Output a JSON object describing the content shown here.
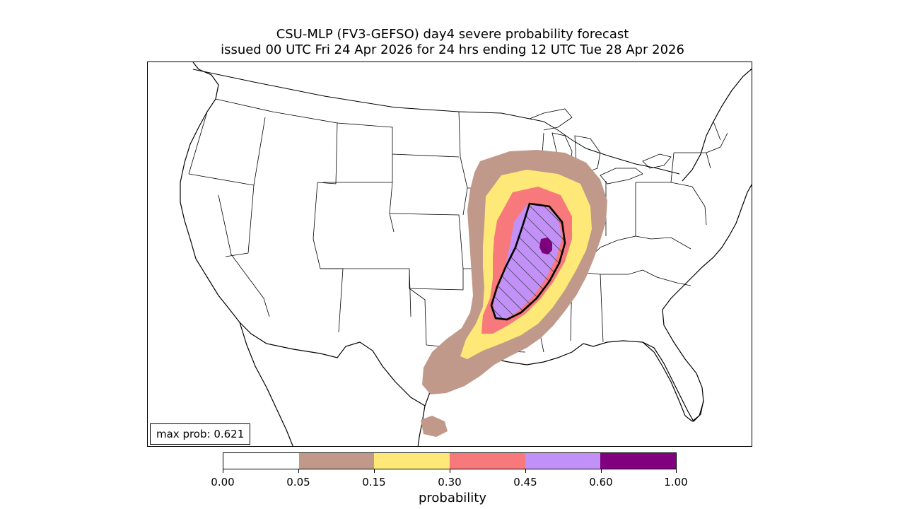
{
  "title": {
    "line1": "CSU-MLP (FV3-GEFSO) day4 severe probability forecast",
    "line2": "issued 00 UTC Fri 24 Apr 2026 for 24 hrs ending 12 UTC Tue 28 Apr 2026"
  },
  "map": {
    "region": "CONUS",
    "max_prob_text": "max prob: 0.621",
    "significant_hatch": true
  },
  "colorbar": {
    "label": "probability",
    "ticks": [
      "0.00",
      "0.05",
      "0.15",
      "0.30",
      "0.45",
      "0.60",
      "1.00"
    ],
    "colors": [
      "#ffffff",
      "#c0998a",
      "#fde878",
      "#f7797b",
      "#c191f8",
      "#80007f"
    ]
  },
  "colors": {
    "outline": "#000000",
    "hatch_contour": "#000000"
  }
}
